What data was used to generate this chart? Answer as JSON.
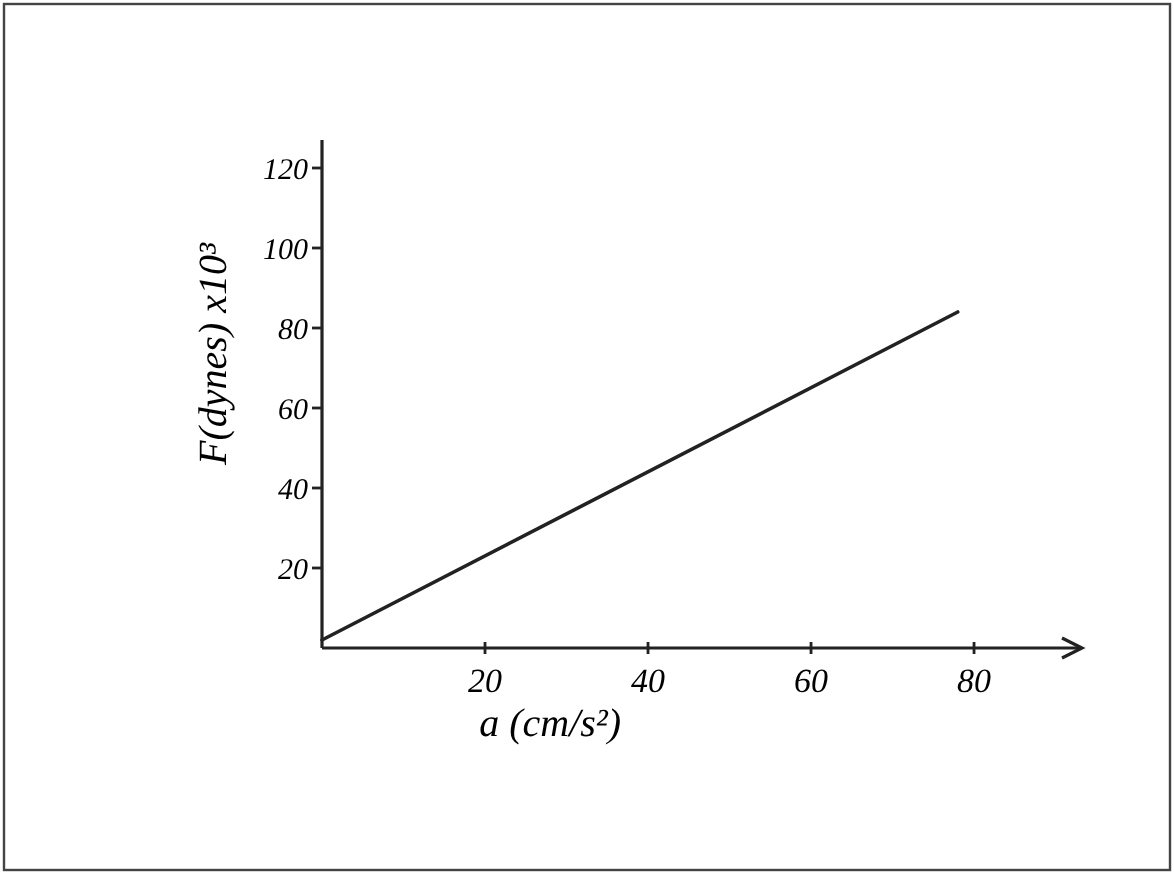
{
  "chart_data": {
    "type": "line",
    "xlabel": "a (cm/s²)",
    "ylabel": "F(dynes) x10³",
    "x": [
      0,
      78
    ],
    "series": [
      {
        "color": "#222222",
        "values": [
          2,
          84
        ]
      }
    ],
    "xlim": [
      0,
      93
    ],
    "ylim": [
      0,
      127
    ],
    "xticks": [
      20,
      40,
      60,
      80
    ],
    "yticks": [
      20,
      40,
      60,
      80,
      100,
      120
    ],
    "grid": false,
    "marker": "none",
    "line_style": "solid"
  }
}
